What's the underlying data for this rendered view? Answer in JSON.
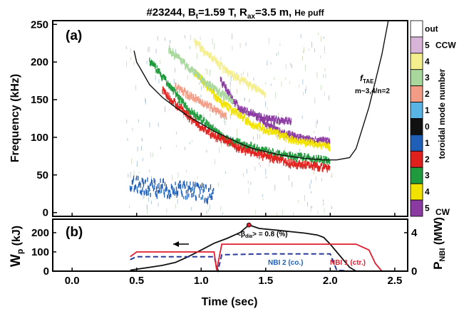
{
  "figure": {
    "title_prefix": "#23244, B",
    "title_b_sub": "t",
    "title_mid": "=1.59 T, R",
    "title_r_sub": "ax",
    "title_suffix": "=3.5 m,",
    "title_gas": "He puff"
  },
  "chart_data": [
    {
      "type": "scatter",
      "panel_label": "(a)",
      "ylabel": "Frequency (kHz)",
      "xlim": [
        -0.15,
        2.6
      ],
      "ylim": [
        -5,
        255
      ],
      "yticks": [
        "0",
        "50",
        "100",
        "150",
        "200",
        "250"
      ],
      "colorbar_label": "toroidal mode number",
      "colorbar": [
        {
          "label": "out",
          "color": "#ffffff"
        },
        {
          "label": "5",
          "color": "#d8b4d8",
          "dir": "CCW"
        },
        {
          "label": "4",
          "color": "#f4ee8c"
        },
        {
          "label": "3",
          "color": "#a8d89c"
        },
        {
          "label": "2",
          "color": "#f29c86"
        },
        {
          "label": "1",
          "color": "#58b4e4"
        },
        {
          "label": "0",
          "color": "#111111"
        },
        {
          "label": "1",
          "color": "#1f5fb8"
        },
        {
          "label": "2",
          "color": "#e0201c"
        },
        {
          "label": "3",
          "color": "#1f9a3c"
        },
        {
          "label": "4",
          "color": "#f2e200"
        },
        {
          "label": "5",
          "color": "#8a3aa0",
          "dir": "CW"
        }
      ],
      "series": [
        {
          "name": "n=5 CW",
          "color": "#8a3aa0",
          "x": [
            1.15,
            1.3,
            1.5,
            1.7
          ],
          "y": [
            178,
            140,
            127,
            124
          ]
        },
        {
          "name": "n=5 CW upper",
          "color": "#8a3aa0",
          "x": [
            1.45,
            1.6,
            1.8,
            2.0
          ],
          "y": [
            128,
            110,
            100,
            97
          ]
        },
        {
          "name": "n=4 CW",
          "color": "#f2e200",
          "x": [
            0.95,
            1.15,
            1.4,
            1.7,
            2.0
          ],
          "y": [
            190,
            150,
            120,
            100,
            90
          ]
        },
        {
          "name": "n=3 CW",
          "color": "#1f9a3c",
          "x": [
            0.6,
            0.9,
            1.2,
            1.6,
            2.0
          ],
          "y": [
            205,
            140,
            100,
            80,
            72
          ]
        },
        {
          "name": "n=2 CW",
          "color": "#e0201c",
          "x": [
            0.7,
            1.0,
            1.3,
            1.7,
            2.0
          ],
          "y": [
            165,
            115,
            88,
            68,
            62
          ]
        },
        {
          "name": "n=1 CW",
          "color": "#1f5fb8",
          "x": [
            0.45,
            0.7,
            0.95,
            1.1
          ],
          "y": [
            40,
            35,
            30,
            28
          ]
        },
        {
          "name": "n=4 CCW",
          "color": "#f4ee8c",
          "x": [
            0.95,
            1.2,
            1.5
          ],
          "y": [
            230,
            190,
            160
          ]
        },
        {
          "name": "n=3 CCW",
          "color": "#a8d89c",
          "x": [
            0.75,
            1.0,
            1.25
          ],
          "y": [
            220,
            180,
            150
          ]
        },
        {
          "name": "n=2 CCW",
          "color": "#f29c86",
          "x": [
            0.8,
            1.0,
            1.2
          ],
          "y": [
            170,
            150,
            130
          ]
        }
      ],
      "ftae_curve": {
        "x": [
          0.48,
          0.5,
          0.55,
          0.6,
          0.7,
          0.8,
          0.9,
          1.0,
          1.1,
          1.2,
          1.3,
          1.4,
          1.6,
          1.8,
          1.95,
          2.05,
          2.15,
          2.2,
          2.3,
          2.4,
          2.45
        ],
        "y": [
          215,
          200,
          185,
          170,
          153,
          140,
          128,
          118,
          108,
          100,
          92,
          85,
          77,
          72,
          70,
          70,
          73,
          85,
          140,
          210,
          255
        ]
      },
      "annotations": {
        "ftae_name": "f",
        "ftae_sub": "TAE",
        "ftae_modes": "m~3,4/n=2"
      }
    },
    {
      "type": "line",
      "panel_label": "(b)",
      "xlabel": "Time (sec)",
      "ylabel_left_main": "W",
      "ylabel_left_sub": "p",
      "ylabel_left_unit": " (kJ)",
      "ylabel_right_main": "P",
      "ylabel_right_sub": "NBI",
      "ylabel_right_unit": " (MW)",
      "xlim": [
        -0.15,
        2.6
      ],
      "xticks": [
        "0.0",
        "0.5",
        "1.0",
        "1.5",
        "2.0",
        "2.5"
      ],
      "ylim_left": [
        0,
        270
      ],
      "yticks_left": [
        "0",
        "100",
        "200"
      ],
      "ylim_right": [
        0,
        5.4
      ],
      "yticks_right": [
        "0",
        "4"
      ],
      "beta_label": "<β",
      "beta_sub": "dia",
      "beta_value": "> = 0.8 (%)",
      "beta_peak": {
        "x": 1.37,
        "y": 240
      },
      "legend": [
        "NBI 2 (co.)",
        "NBI 1 (ctr.)"
      ],
      "series": [
        {
          "name": "W",
          "color": "#111111",
          "axis": "left",
          "x": [
            0.45,
            0.5,
            0.6,
            0.7,
            0.8,
            0.9,
            1.0,
            1.1,
            1.2,
            1.3,
            1.37,
            1.45,
            1.6,
            1.7,
            1.8,
            1.9,
            1.95,
            2.0,
            2.05,
            2.1,
            2.15,
            2.2
          ],
          "y": [
            5,
            10,
            20,
            30,
            45,
            75,
            110,
            145,
            170,
            200,
            240,
            222,
            212,
            205,
            198,
            188,
            175,
            140,
            100,
            60,
            20,
            0
          ]
        },
        {
          "name": "NBI 2 (co.)",
          "color": "#2a3a9c",
          "axis": "right",
          "dash": true,
          "x": [
            0.45,
            0.5,
            0.6,
            0.8,
            1.0,
            1.1,
            1.13,
            1.16,
            1.5,
            1.8,
            2.0,
            2.05,
            2.15
          ],
          "y": [
            1.2,
            1.5,
            1.5,
            1.5,
            1.5,
            1.5,
            0.1,
            1.7,
            1.8,
            1.8,
            1.8,
            0.1,
            0
          ]
        },
        {
          "name": "NBI 1 (ctr.)",
          "color": "#e01d2e",
          "axis": "right",
          "x": [
            0.45,
            0.5,
            0.8,
            1.0,
            1.1,
            1.12,
            1.16,
            1.2,
            1.5,
            2.0,
            2.2,
            2.3,
            2.35,
            2.4
          ],
          "y": [
            1.5,
            2.0,
            2.0,
            2.0,
            2.0,
            0.1,
            2.8,
            2.8,
            2.8,
            2.8,
            2.8,
            2.2,
            0.8,
            0
          ]
        }
      ]
    }
  ]
}
